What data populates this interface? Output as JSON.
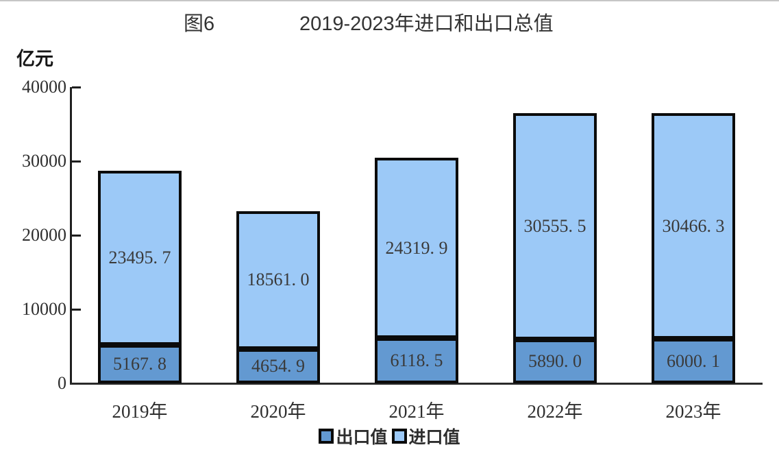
{
  "page": {
    "figure_label": "图6",
    "title": "2019-2023年进口和出口总值",
    "unit_label": "亿元"
  },
  "chart_data": {
    "type": "bar",
    "stacked": true,
    "title": "2019-2023年进口和出口总值",
    "figure_label": "图6",
    "ylabel": "亿元",
    "xlabel": "",
    "categories": [
      "2019年",
      "2020年",
      "2021年",
      "2022年",
      "2023年"
    ],
    "series": [
      {
        "name": "出口值",
        "color": "#6399D1",
        "values": [
          5167.8,
          4654.9,
          6118.5,
          5890.0,
          6000.1
        ],
        "labels": [
          "5167. 8",
          "4654. 9",
          "6118. 5",
          "5890. 0",
          "6000. 1"
        ]
      },
      {
        "name": "进口值",
        "color": "#9CC9F7",
        "values": [
          23495.7,
          18561.0,
          24319.9,
          30555.5,
          30466.3
        ],
        "labels": [
          "23495. 7",
          "18561. 0",
          "24319. 9",
          "30555. 5",
          "30466. 3"
        ]
      }
    ],
    "ylim": [
      0,
      40000
    ],
    "yticks": [
      0,
      10000,
      20000,
      30000,
      40000
    ],
    "ytick_labels": [
      "0",
      "10000",
      "20000",
      "30000",
      "40000"
    ],
    "grid": false,
    "legend_position": "bottom",
    "bar_border_color": "#0b0b0b",
    "axis_color": "#1f1f1f"
  }
}
